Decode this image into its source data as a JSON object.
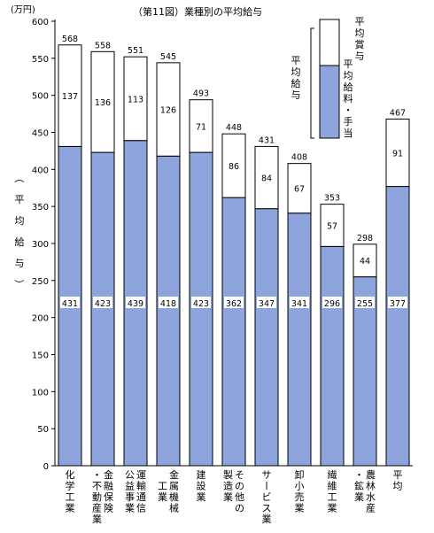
{
  "chart_data": {
    "type": "bar",
    "stacked": true,
    "title": "（第11図）業種別の平均給与",
    "unit": "(万円)",
    "ylabel": "（平均給与）",
    "ylim": [
      0,
      600
    ],
    "yticks": [
      0,
      50,
      100,
      150,
      200,
      250,
      300,
      350,
      400,
      450,
      500,
      550,
      600
    ],
    "grid": false,
    "legend_position": "top-right",
    "categories": [
      {
        "name": "化学工業",
        "lines": [
          "化学工業"
        ]
      },
      {
        "name": "金融保険・不動産業",
        "lines": [
          "金融保険",
          "・不動産業"
        ]
      },
      {
        "name": "運輸通信公益事業",
        "lines": [
          "運輸通信",
          "公益事業"
        ]
      },
      {
        "name": "金属機械工業",
        "lines": [
          "金属機械",
          "　工業"
        ]
      },
      {
        "name": "建設業",
        "lines": [
          "建設業"
        ]
      },
      {
        "name": "その他の製造業",
        "lines": [
          "その他の",
          "製造業"
        ]
      },
      {
        "name": "サービス業",
        "lines": [
          "サービス業"
        ]
      },
      {
        "name": "卸小売業",
        "lines": [
          "卸小売業"
        ]
      },
      {
        "name": "繊維工業",
        "lines": [
          "繊維工業"
        ]
      },
      {
        "name": "農林水産・鉱業",
        "lines": [
          "農林水産",
          "・鉱業"
        ]
      },
      {
        "name": "平均",
        "lines": [
          "平均"
        ]
      }
    ],
    "series": [
      {
        "name": "平均給料・手当",
        "color": "#8ea4dc",
        "values": [
          431,
          423,
          439,
          418,
          423,
          362,
          347,
          341,
          296,
          255,
          377
        ]
      },
      {
        "name": "平均賞与",
        "color": "#ffffff",
        "values": [
          137,
          136,
          113,
          126,
          71,
          86,
          84,
          67,
          57,
          44,
          91
        ]
      }
    ],
    "totals": [
      568,
      558,
      551,
      545,
      493,
      448,
      431,
      408,
      353,
      298,
      467
    ],
    "legend": {
      "group_label": "平均給与",
      "items": [
        {
          "label": "平均賞与",
          "color": "#ffffff"
        },
        {
          "label": "平均給料・手当",
          "color": "#8ea4dc"
        }
      ]
    }
  }
}
